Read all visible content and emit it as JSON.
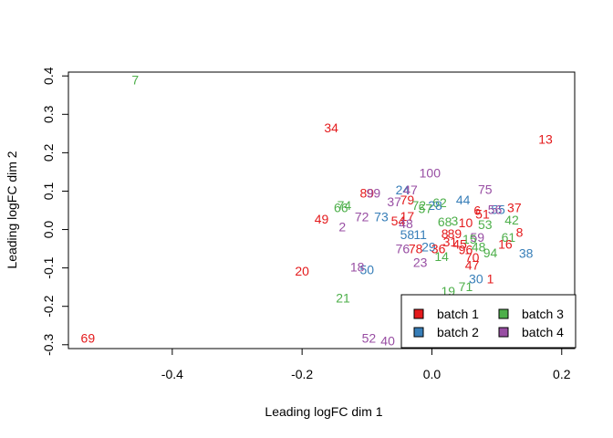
{
  "chart_data": {
    "type": "scatter",
    "title": "",
    "xlabel": "Leading logFC dim 1",
    "ylabel": "Leading logFC dim 2",
    "xlim": [
      -0.56,
      0.22
    ],
    "ylim": [
      -0.31,
      0.41
    ],
    "xticks": [
      -0.4,
      -0.2,
      0.0,
      0.2
    ],
    "xtick_labels": [
      "-0.4",
      "-0.2",
      "0.0",
      "0.2"
    ],
    "yticks": [
      -0.3,
      -0.2,
      -0.1,
      0.0,
      0.1,
      0.2,
      0.3,
      0.4
    ],
    "ytick_labels": [
      "-0.3",
      "-0.2",
      "-0.1",
      "0.0",
      "0.1",
      "0.2",
      "0.3",
      "0.4"
    ],
    "grid": false,
    "legend_position": "bottom-right",
    "series": [
      {
        "name": "batch 1",
        "color": "#e41a1c"
      },
      {
        "name": "batch 2",
        "color": "#377eb8"
      },
      {
        "name": "batch 3",
        "color": "#4daf4a"
      },
      {
        "name": "batch 4",
        "color": "#984ea3"
      }
    ],
    "points": [
      {
        "label": "7",
        "x": -0.457,
        "y": 0.39,
        "batch": 3
      },
      {
        "label": "34",
        "x": -0.155,
        "y": 0.265,
        "batch": 1
      },
      {
        "label": "13",
        "x": 0.175,
        "y": 0.235,
        "batch": 1
      },
      {
        "label": "100",
        "x": -0.003,
        "y": 0.147,
        "batch": 4
      },
      {
        "label": "75",
        "x": 0.082,
        "y": 0.105,
        "batch": 4
      },
      {
        "label": "44",
        "x": 0.048,
        "y": 0.077,
        "batch": 2
      },
      {
        "label": "24",
        "x": -0.045,
        "y": 0.103,
        "batch": 2
      },
      {
        "label": "47",
        "x": -0.033,
        "y": 0.103,
        "batch": 4
      },
      {
        "label": "89",
        "x": -0.1,
        "y": 0.095,
        "batch": 1
      },
      {
        "label": "99",
        "x": -0.09,
        "y": 0.095,
        "batch": 4
      },
      {
        "label": "74",
        "x": -0.135,
        "y": 0.063,
        "batch": 3
      },
      {
        "label": "66",
        "x": -0.14,
        "y": 0.057,
        "batch": 3
      },
      {
        "label": "37",
        "x": -0.058,
        "y": 0.072,
        "batch": 4
      },
      {
        "label": "79",
        "x": -0.038,
        "y": 0.077,
        "batch": 1
      },
      {
        "label": "72",
        "x": -0.02,
        "y": 0.063,
        "batch": 3
      },
      {
        "label": "62",
        "x": 0.012,
        "y": 0.07,
        "batch": 3
      },
      {
        "label": "28",
        "x": 0.005,
        "y": 0.063,
        "batch": 2
      },
      {
        "label": "57",
        "x": -0.01,
        "y": 0.055,
        "batch": 3
      },
      {
        "label": "37",
        "x": 0.127,
        "y": 0.057,
        "batch": 1
      },
      {
        "label": "55",
        "x": 0.102,
        "y": 0.052,
        "batch": 2
      },
      {
        "label": "56",
        "x": 0.097,
        "y": 0.052,
        "batch": 4
      },
      {
        "label": "6",
        "x": 0.07,
        "y": 0.05,
        "batch": 1
      },
      {
        "label": "51",
        "x": 0.078,
        "y": 0.04,
        "batch": 1
      },
      {
        "label": "42",
        "x": 0.123,
        "y": 0.025,
        "batch": 3
      },
      {
        "label": "49",
        "x": -0.17,
        "y": 0.028,
        "batch": 1
      },
      {
        "label": "72",
        "x": -0.108,
        "y": 0.033,
        "batch": 4
      },
      {
        "label": "73",
        "x": -0.078,
        "y": 0.033,
        "batch": 2
      },
      {
        "label": "54",
        "x": -0.052,
        "y": 0.023,
        "batch": 1
      },
      {
        "label": "17",
        "x": -0.038,
        "y": 0.035,
        "batch": 1
      },
      {
        "label": "2",
        "x": -0.138,
        "y": 0.007,
        "batch": 4
      },
      {
        "label": "48",
        "x": -0.04,
        "y": 0.015,
        "batch": 4
      },
      {
        "label": "8",
        "x": 0.135,
        "y": -0.007,
        "batch": 1
      },
      {
        "label": "61",
        "x": 0.118,
        "y": -0.02,
        "batch": 3
      },
      {
        "label": "16",
        "x": 0.113,
        "y": -0.038,
        "batch": 1
      },
      {
        "label": "38",
        "x": 0.145,
        "y": -0.062,
        "batch": 2
      },
      {
        "label": "94",
        "x": 0.09,
        "y": -0.06,
        "batch": 3
      },
      {
        "label": "59",
        "x": 0.07,
        "y": -0.02,
        "batch": 4
      },
      {
        "label": "48",
        "x": 0.072,
        "y": -0.045,
        "batch": 3
      },
      {
        "label": "53",
        "x": 0.082,
        "y": 0.013,
        "batch": 3
      },
      {
        "label": "10",
        "x": 0.052,
        "y": 0.018,
        "batch": 1
      },
      {
        "label": "3",
        "x": 0.035,
        "y": 0.023,
        "batch": 3
      },
      {
        "label": "68",
        "x": 0.02,
        "y": 0.02,
        "batch": 3
      },
      {
        "label": "11",
        "x": -0.018,
        "y": -0.013,
        "batch": 2
      },
      {
        "label": "58",
        "x": -0.038,
        "y": -0.013,
        "batch": 2
      },
      {
        "label": "8",
        "x": 0.02,
        "y": -0.01,
        "batch": 1
      },
      {
        "label": "89",
        "x": 0.035,
        "y": -0.01,
        "batch": 1
      },
      {
        "label": "15",
        "x": 0.058,
        "y": -0.025,
        "batch": 3
      },
      {
        "label": "31",
        "x": 0.028,
        "y": -0.032,
        "batch": 1
      },
      {
        "label": "45",
        "x": 0.043,
        "y": -0.038,
        "batch": 1
      },
      {
        "label": "76",
        "x": -0.045,
        "y": -0.05,
        "batch": 4
      },
      {
        "label": "78",
        "x": -0.025,
        "y": -0.05,
        "batch": 1
      },
      {
        "label": "29",
        "x": -0.005,
        "y": -0.045,
        "batch": 2
      },
      {
        "label": "36",
        "x": 0.01,
        "y": -0.05,
        "batch": 1
      },
      {
        "label": "96",
        "x": 0.052,
        "y": -0.052,
        "batch": 1
      },
      {
        "label": "14",
        "x": 0.015,
        "y": -0.07,
        "batch": 3
      },
      {
        "label": "70",
        "x": 0.062,
        "y": -0.072,
        "batch": 1
      },
      {
        "label": "23",
        "x": -0.018,
        "y": -0.085,
        "batch": 4
      },
      {
        "label": "47",
        "x": 0.062,
        "y": -0.093,
        "batch": 1
      },
      {
        "label": "50",
        "x": -0.1,
        "y": -0.105,
        "batch": 2
      },
      {
        "label": "18",
        "x": -0.115,
        "y": -0.097,
        "batch": 4
      },
      {
        "label": "20",
        "x": -0.2,
        "y": -0.108,
        "batch": 1
      },
      {
        "label": "30",
        "x": 0.068,
        "y": -0.128,
        "batch": 2
      },
      {
        "label": "1",
        "x": 0.09,
        "y": -0.128,
        "batch": 1
      },
      {
        "label": "71",
        "x": 0.052,
        "y": -0.148,
        "batch": 3
      },
      {
        "label": "19",
        "x": 0.025,
        "y": -0.16,
        "batch": 3
      },
      {
        "label": "21",
        "x": -0.137,
        "y": -0.178,
        "batch": 3
      },
      {
        "label": "69",
        "x": -0.53,
        "y": -0.283,
        "batch": 1
      },
      {
        "label": "52",
        "x": -0.097,
        "y": -0.283,
        "batch": 4
      },
      {
        "label": "40",
        "x": -0.068,
        "y": -0.29,
        "batch": 4
      }
    ]
  }
}
